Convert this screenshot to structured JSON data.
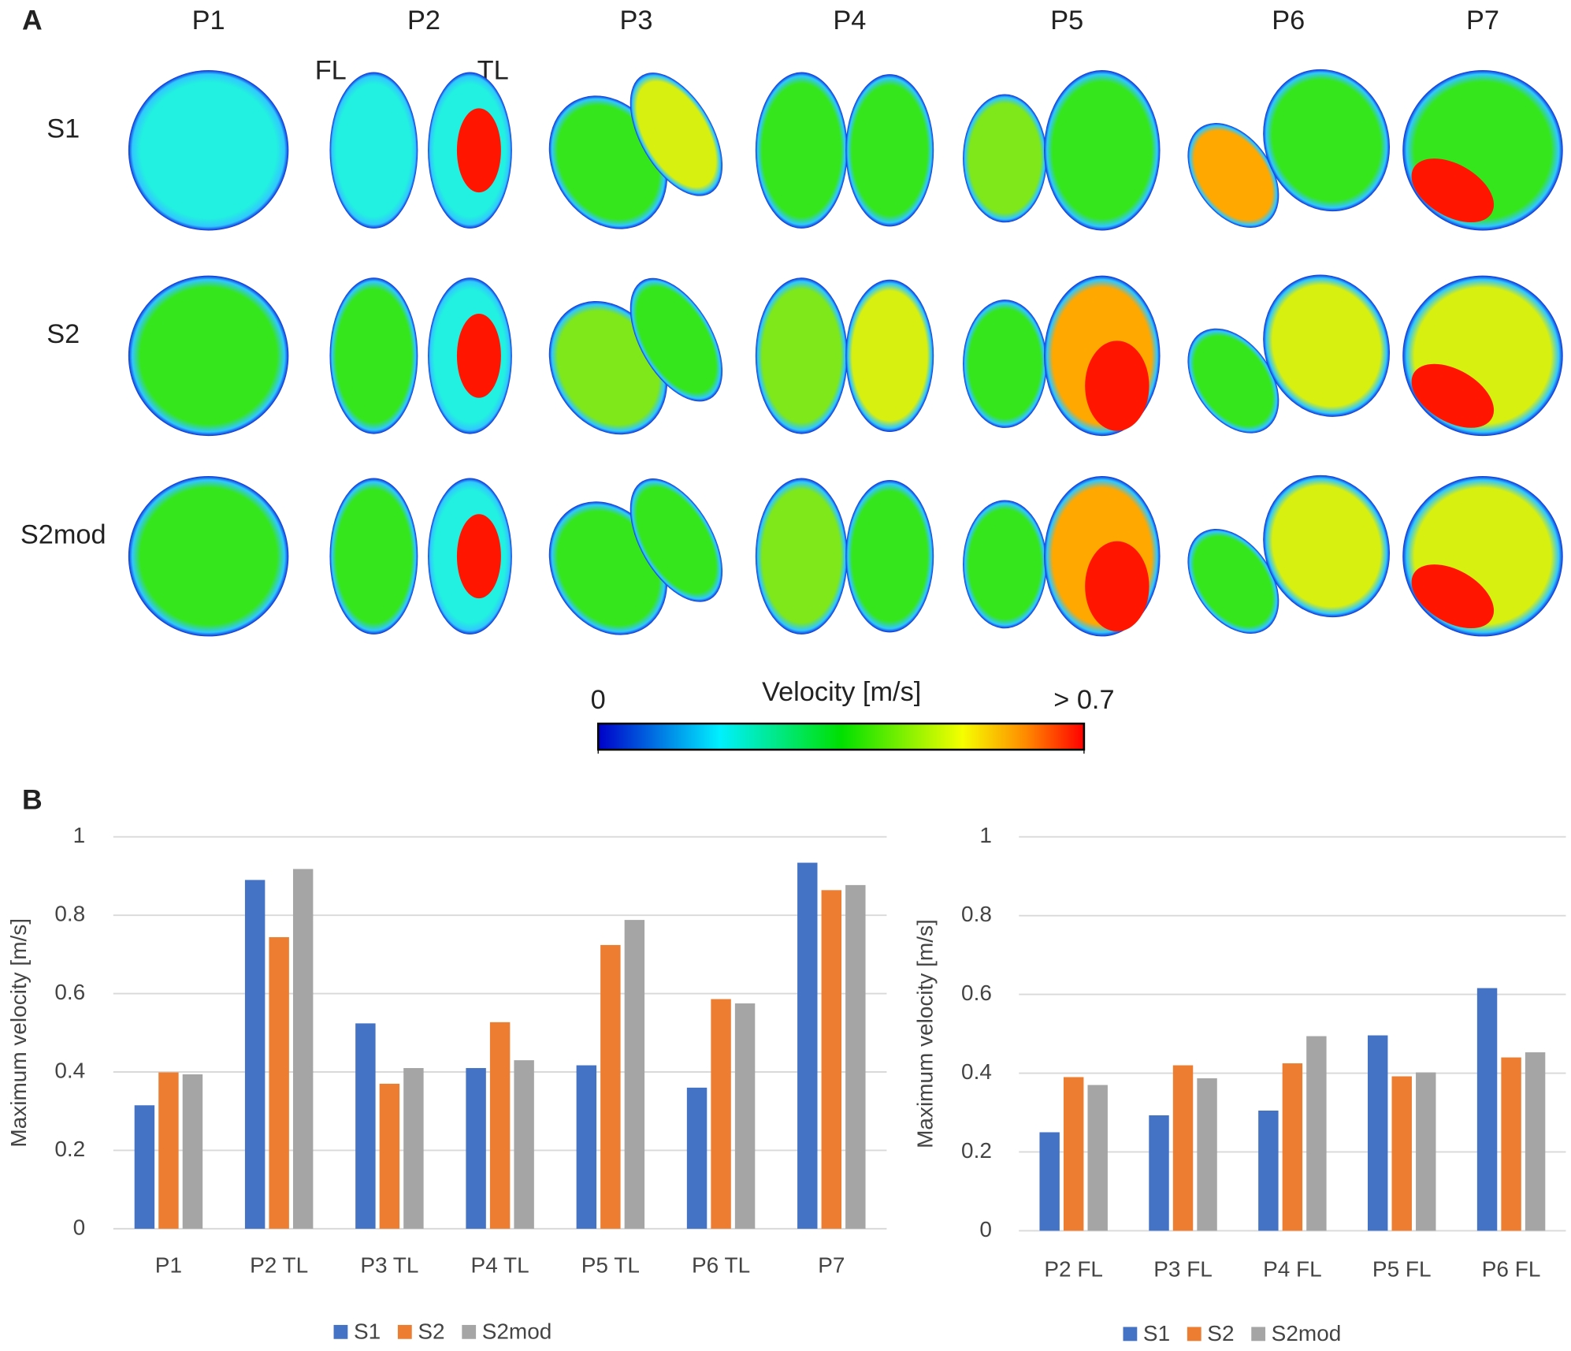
{
  "panel_a": {
    "label": "A",
    "columns": [
      "P1",
      "P2",
      "P3",
      "P4",
      "P5",
      "P6",
      "P7"
    ],
    "rows": [
      "S1",
      "S2",
      "S2mod"
    ],
    "lumen_labels": [
      "FL",
      "TL"
    ],
    "colorbar": {
      "title": "Velocity [m/s]",
      "range": [
        0,
        0.7
      ],
      "ticks": [
        0,
        {
          "value": 0.7,
          "label": "> 0.7"
        }
      ]
    }
  },
  "panel_b": {
    "label": "B"
  },
  "chart_data": [
    {
      "type": "bar",
      "categories": [
        "P1",
        "P2 TL",
        "P3 TL",
        "P4 TL",
        "P5 TL",
        "P6 TL",
        "P7"
      ],
      "series": [
        {
          "name": "S1",
          "color": "#4472c4",
          "values": [
            0.315,
            0.89,
            0.524,
            0.41,
            0.417,
            0.36,
            0.934
          ]
        },
        {
          "name": "S2",
          "color": "#ed7d31",
          "values": [
            0.399,
            0.744,
            0.37,
            0.527,
            0.724,
            0.586,
            0.864
          ]
        },
        {
          "name": "S2mod",
          "color": "#a5a5a5",
          "values": [
            0.394,
            0.918,
            0.41,
            0.43,
            0.788,
            0.575,
            0.877
          ]
        }
      ],
      "y_label": "Maximum velocity [m/s]",
      "ylim": [
        0,
        1
      ],
      "yticks": [
        0,
        0.2,
        0.4,
        0.6,
        0.8,
        1
      ],
      "grid": true,
      "legend": "bottom"
    },
    {
      "type": "bar",
      "categories": [
        "P2 FL",
        "P3 FL",
        "P4 FL",
        "P5 FL",
        "P6 FL"
      ],
      "series": [
        {
          "name": "S1",
          "color": "#4472c4",
          "values": [
            0.25,
            0.293,
            0.305,
            0.496,
            0.616
          ]
        },
        {
          "name": "S2",
          "color": "#ed7d31",
          "values": [
            0.39,
            0.42,
            0.425,
            0.392,
            0.44
          ]
        },
        {
          "name": "S2mod",
          "color": "#a5a5a5",
          "values": [
            0.37,
            0.387,
            0.494,
            0.402,
            0.453
          ]
        }
      ],
      "y_label": "Maximum velocity [m/s]",
      "ylim": [
        0,
        1
      ],
      "yticks": [
        0,
        0.2,
        0.4,
        0.6,
        0.8,
        1
      ],
      "grid": true,
      "legend": "bottom"
    }
  ]
}
